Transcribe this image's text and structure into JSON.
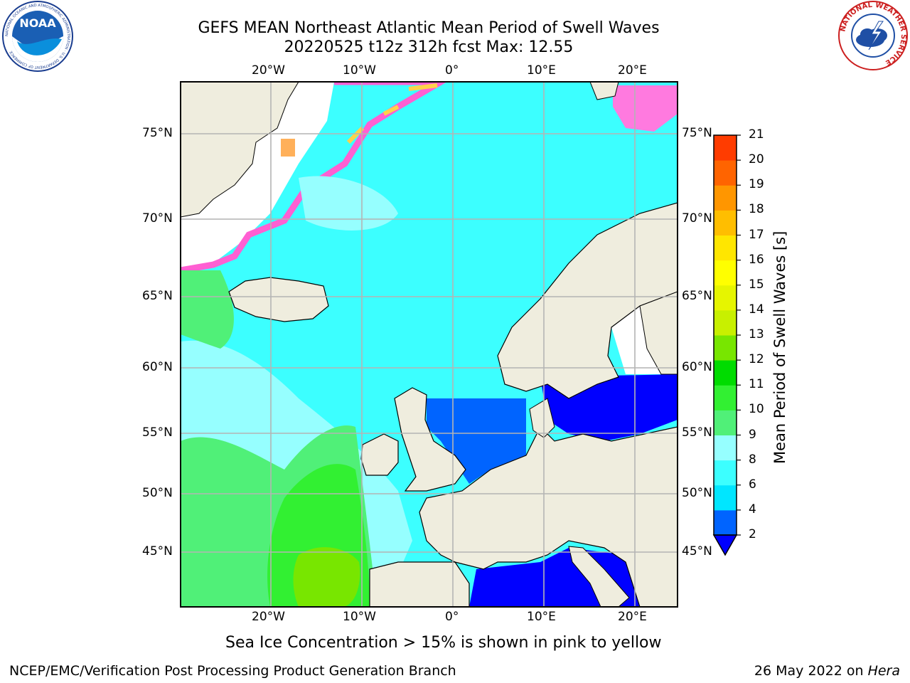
{
  "header": {
    "title_line1": "GEFS MEAN Northeast Atlantic Mean Period of Swell Waves",
    "title_line2": "20220525 t12z 312h fcst   Max: 12.55"
  },
  "logos": {
    "noaa_text": "NOAA",
    "noaa_ring_text": "NATIONAL OCEANIC AND ATMOSPHERIC ADMINISTRATION · U.S. DEPARTMENT OF COMMERCE",
    "nws_ring_text": "NATIONAL WEATHER SERVICE"
  },
  "map": {
    "lon_labels": [
      "20°W",
      "10°W",
      "0°",
      "10°E",
      "20°E"
    ],
    "lat_labels": [
      "75°N",
      "70°N",
      "65°N",
      "60°N",
      "55°N",
      "50°N",
      "45°N"
    ],
    "colors": {
      "land": "#efedde",
      "no_data": "#ffffff",
      "ice_pink": "#ff5fd2",
      "ice_yellow": "#ffd24a",
      "grid": "#b4b4b4"
    }
  },
  "colorbar": {
    "title": "Mean Period of Swell Waves [s]",
    "tick_labels": [
      "2",
      "4",
      "6",
      "8",
      "9",
      "10",
      "11",
      "12",
      "13",
      "14",
      "15",
      "16",
      "17",
      "18",
      "19",
      "20",
      "21"
    ],
    "colors": [
      "#0064ff",
      "#00e6ff",
      "#3cffff",
      "#96ffff",
      "#50f078",
      "#32f032",
      "#00dc00",
      "#78e600",
      "#c8f000",
      "#e6f500",
      "#ffff00",
      "#ffe600",
      "#ffbe00",
      "#ff9600",
      "#ff6400",
      "#ff3c00",
      "#ff0000"
    ],
    "under_color": "#0000ff"
  },
  "caption": "Sea Ice Concentration > 15% is shown in pink to yellow",
  "footer": {
    "left": "NCEP/EMC/Verification Post Processing Product Generation Branch",
    "right_date": "26 May 2022 on ",
    "right_machine": "Hera"
  }
}
